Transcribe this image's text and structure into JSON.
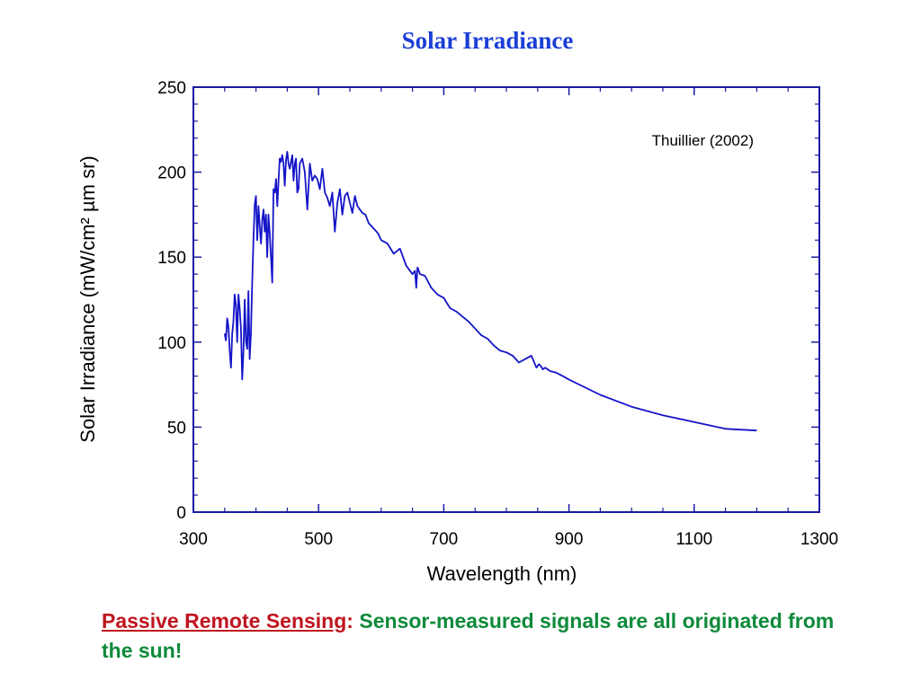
{
  "slide": {
    "caption": {
      "term": "Passive Remote Sensing",
      "colon": ":",
      "text": " Sensor-measured signals are all originated from the sun!"
    }
  },
  "colors": {
    "title": "#1a3fd6",
    "axes": "#1a1aa0",
    "line": "#1414c8",
    "caption_term": "#c0141e",
    "caption_text": "#0e8a3a"
  },
  "chart_data": {
    "type": "line",
    "title": "Solar Irradiance",
    "xlabel": "Wavelength (nm)",
    "ylabel": "Solar Irradiance (mW/cm² µm sr)",
    "xlim": [
      300,
      1300
    ],
    "ylim": [
      0,
      250
    ],
    "xticks": [
      300,
      500,
      700,
      900,
      1100,
      1300
    ],
    "yticks": [
      0,
      50,
      100,
      150,
      200,
      250
    ],
    "annotation": "Thuillier (2002)",
    "grid": false,
    "series": [
      {
        "x": [
          350,
          352,
          354,
          356,
          358,
          360,
          362,
          364,
          366,
          368,
          370,
          372,
          374,
          376,
          378,
          380,
          382,
          384,
          386,
          388,
          390,
          392,
          394,
          396,
          398,
          400,
          402,
          404,
          406,
          408,
          410,
          412,
          414,
          416,
          418,
          420,
          422,
          424,
          426,
          428,
          430,
          432,
          434,
          436,
          438,
          440,
          442,
          444,
          446,
          448,
          450,
          452,
          454,
          456,
          458,
          460,
          462,
          464,
          466,
          468,
          470,
          474,
          478,
          482,
          486,
          490,
          494,
          498,
          502,
          506,
          510,
          514,
          518,
          522,
          526,
          530,
          534,
          538,
          542,
          546,
          550,
          554,
          558,
          562,
          566,
          570,
          575,
          580,
          585,
          590,
          595,
          600,
          610,
          620,
          630,
          640,
          650,
          654,
          656,
          658,
          662,
          670,
          680,
          690,
          700,
          710,
          720,
          730,
          740,
          750,
          760,
          770,
          780,
          790,
          800,
          810,
          820,
          830,
          840,
          848,
          852,
          855,
          858,
          862,
          866,
          870,
          880,
          890,
          900,
          950,
          1000,
          1050,
          1100,
          1150,
          1200
        ],
        "y": [
          105,
          101,
          114,
          109,
          95,
          85,
          105,
          112,
          128,
          122,
          100,
          128,
          120,
          108,
          78,
          95,
          125,
          100,
          96,
          130,
          90,
          105,
          135,
          160,
          181,
          186,
          160,
          180,
          168,
          158,
          172,
          178,
          165,
          175,
          150,
          175,
          164,
          150,
          135,
          190,
          188,
          196,
          180,
          195,
          208,
          206,
          210,
          205,
          192,
          207,
          212,
          205,
          202,
          206,
          210,
          195,
          205,
          208,
          188,
          190,
          205,
          208,
          200,
          178,
          205,
          195,
          198,
          196,
          190,
          202,
          188,
          185,
          180,
          188,
          165,
          182,
          190,
          175,
          186,
          188,
          182,
          176,
          186,
          180,
          178,
          176,
          175,
          170,
          168,
          166,
          164,
          160,
          158,
          152,
          155,
          145,
          140,
          142,
          132,
          144,
          140,
          139,
          132,
          128,
          126,
          120,
          118,
          115,
          112,
          108,
          104,
          102,
          98,
          95,
          94,
          92,
          88,
          90,
          92,
          85,
          87,
          86,
          84,
          85,
          84,
          83,
          82,
          80,
          78,
          69,
          62,
          57,
          53,
          49,
          48
        ]
      }
    ]
  }
}
